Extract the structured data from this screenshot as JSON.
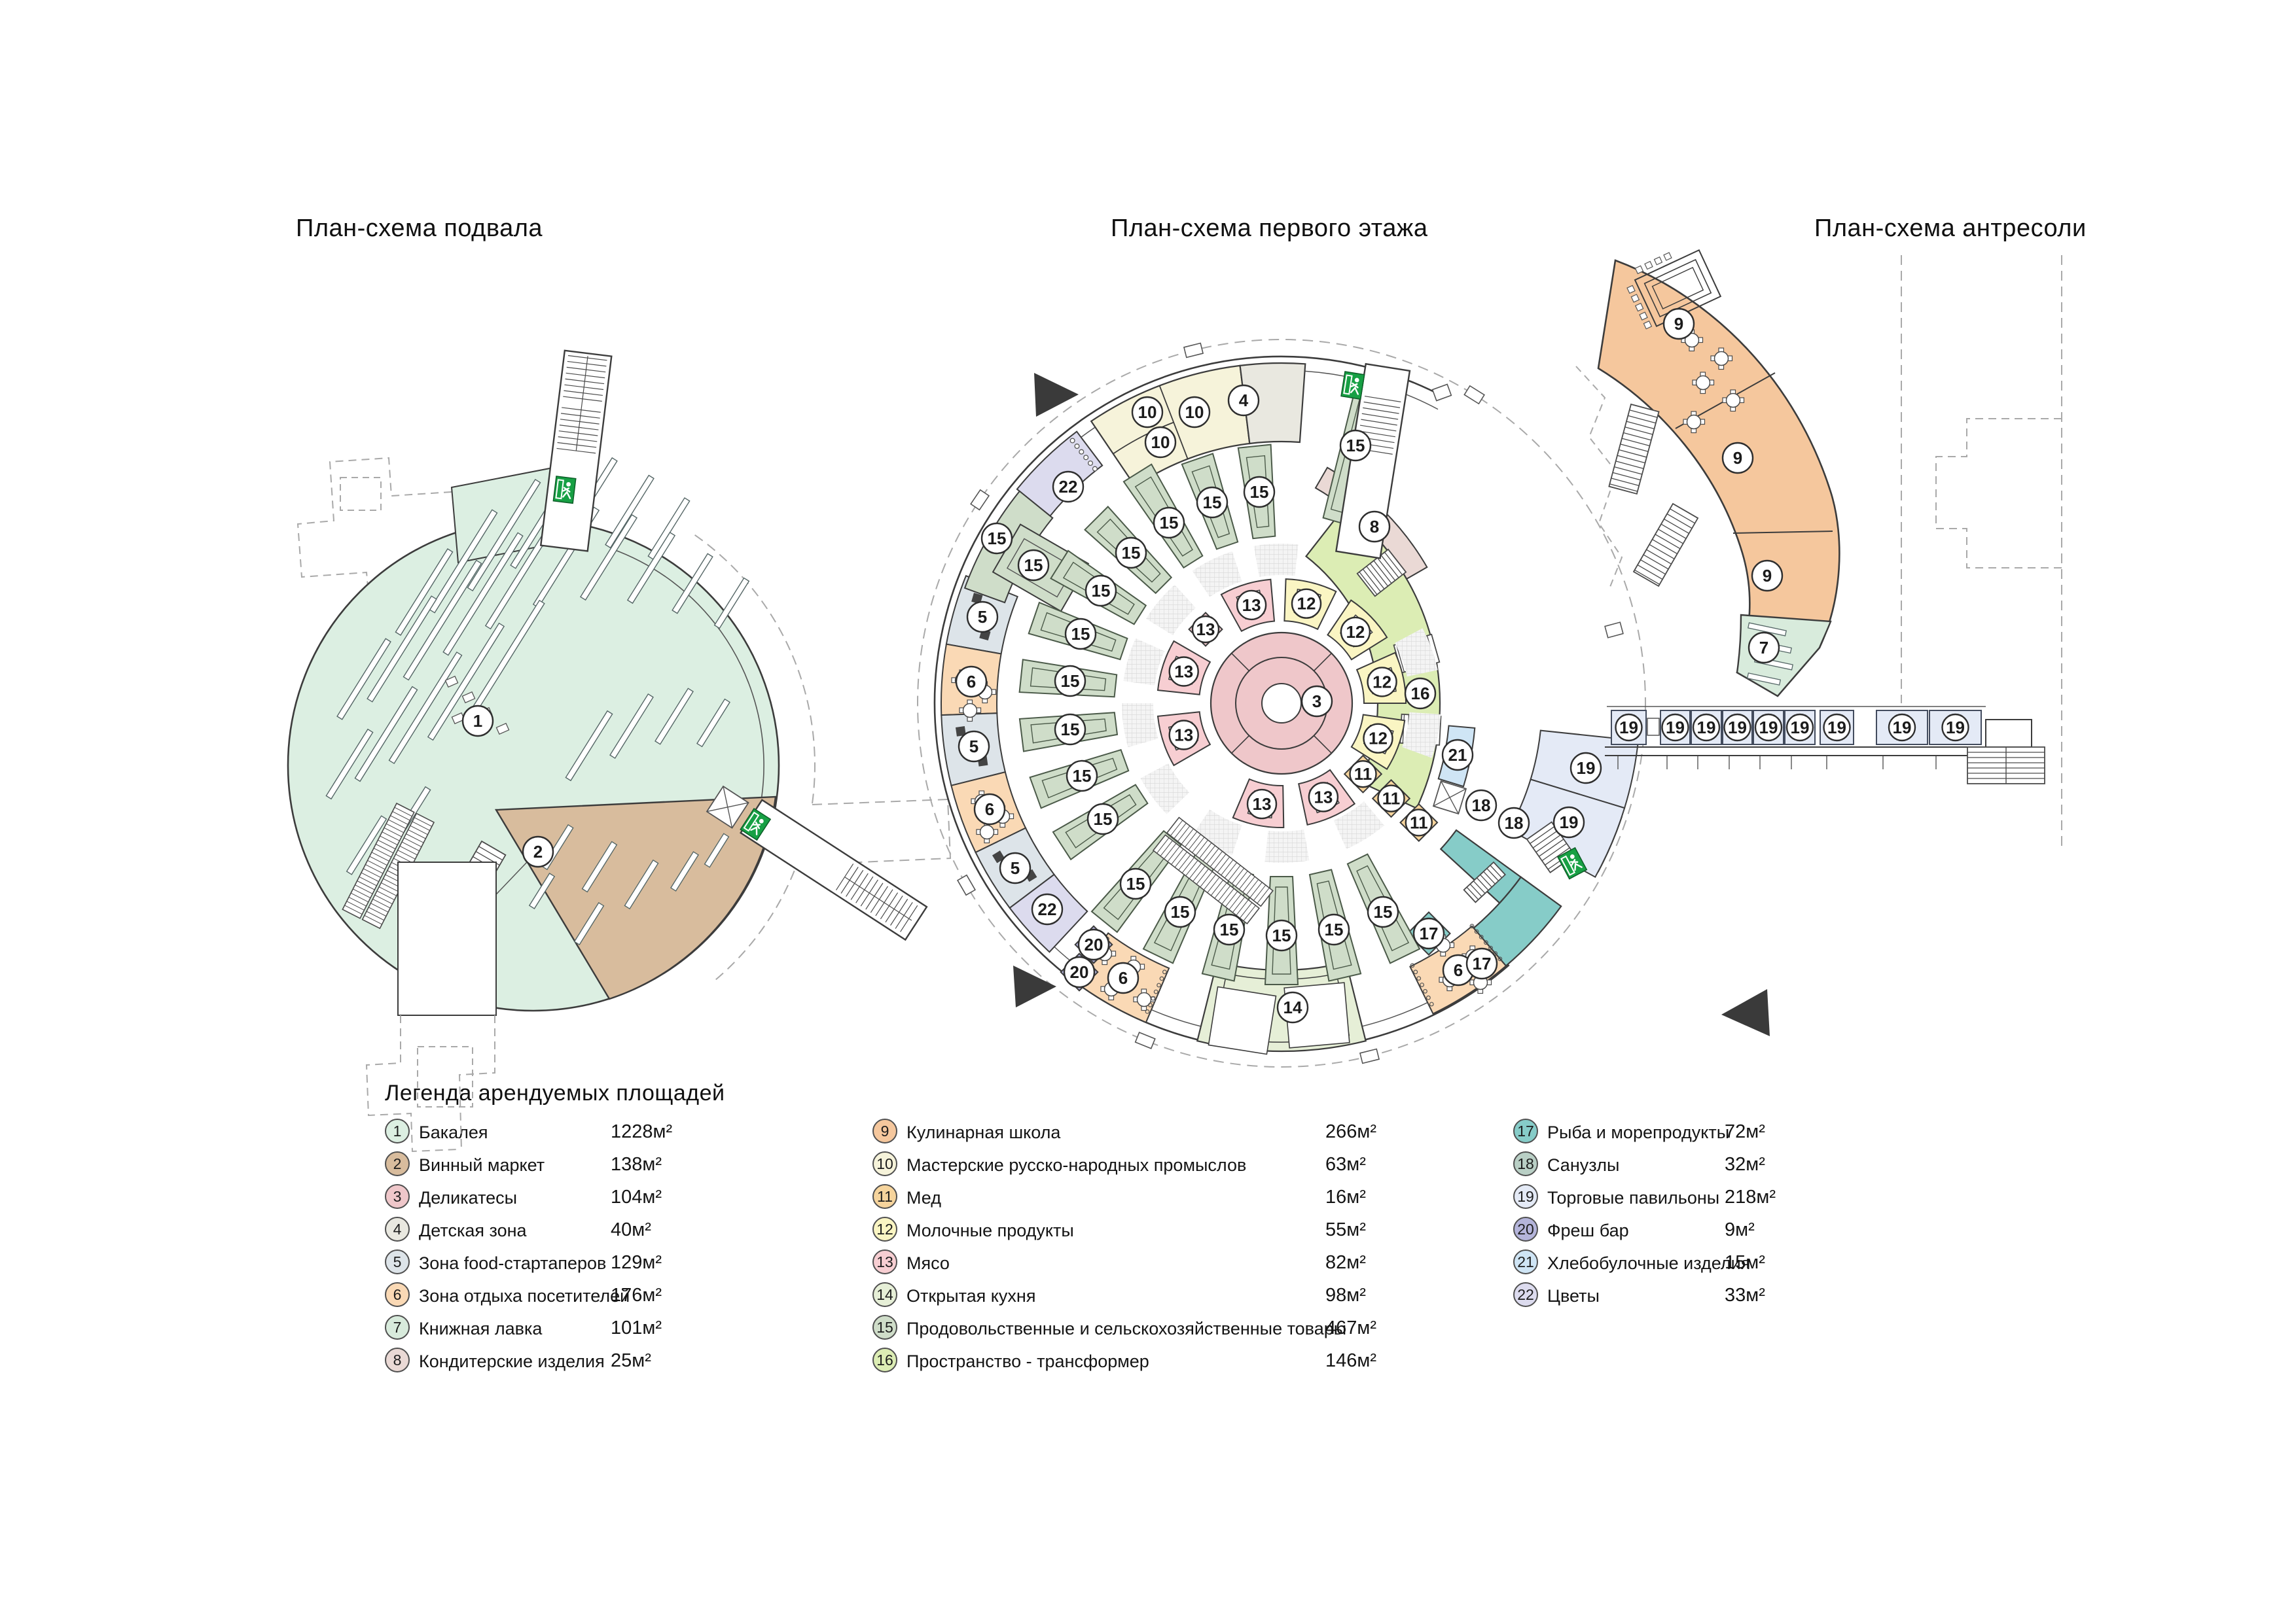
{
  "titles": {
    "basement": "План-схема подвала",
    "first_floor": "План-схема первого этажа",
    "mezzanine": "План-схема антресоли"
  },
  "legend": {
    "title": "Легенда арендуемых площадей",
    "items": [
      {
        "id": "1",
        "label": "Бакалея",
        "area": "1228м²",
        "color": "#dcefe2"
      },
      {
        "id": "2",
        "label": "Винный маркет",
        "area": "138м²",
        "color": "#d8bc9d"
      },
      {
        "id": "3",
        "label": "Деликатесы",
        "area": "104м²",
        "color": "#efc7ca"
      },
      {
        "id": "4",
        "label": "Детская зона",
        "area": "40м²",
        "color": "#e9e8e0"
      },
      {
        "id": "5",
        "label": "Зона food-стартаперов",
        "area": "129м²",
        "color": "#dde4e9"
      },
      {
        "id": "6",
        "label": "Зона отдыха посетителей",
        "area": "176м²",
        "color": "#fad9b5"
      },
      {
        "id": "7",
        "label": "Книжная лавка",
        "area": "101м²",
        "color": "#d8ebdc"
      },
      {
        "id": "8",
        "label": "Кондитерские изделия",
        "area": "25м²",
        "color": "#ead9d5"
      },
      {
        "id": "9",
        "label": "Кулинарная школа",
        "area": "266м²",
        "color": "#f5c79d"
      },
      {
        "id": "10",
        "label": "Мастерские русско-народных промыслов",
        "area": "63м²",
        "color": "#f6f3da"
      },
      {
        "id": "11",
        "label": "Мед",
        "area": "16м²",
        "color": "#f6d49c"
      },
      {
        "id": "12",
        "label": "Молочные продукты",
        "area": "55м²",
        "color": "#faf5c3"
      },
      {
        "id": "13",
        "label": "Мясо",
        "area": "82м²",
        "color": "#f7ced2"
      },
      {
        "id": "14",
        "label": "Открытая кухня",
        "area": "98м²",
        "color": "#e6efd7"
      },
      {
        "id": "15",
        "label": "Продовольственные и сельскохозяйственные товары",
        "area": "467м²",
        "color": "#cfddc9"
      },
      {
        "id": "16",
        "label": "Пространство - трансформер",
        "area": "146м²",
        "color": "#dcedb4"
      },
      {
        "id": "17",
        "label": "Рыба и морепродукты",
        "area": "72м²",
        "color": "#86ccc8"
      },
      {
        "id": "18",
        "label": "Санузлы",
        "area": "32м²",
        "color": "#b9cfc5"
      },
      {
        "id": "19",
        "label": "Торговые павильоны",
        "area": "218м²",
        "color": "#e4eaf6"
      },
      {
        "id": "20",
        "label": "Фреш бар",
        "area": "9м²",
        "color": "#b4b4da"
      },
      {
        "id": "21",
        "label": "Хлебобулочные изделия",
        "area": "15м²",
        "color": "#cfe5f5"
      },
      {
        "id": "22",
        "label": "Цветы",
        "area": "33м²",
        "color": "#dcdbee"
      }
    ]
  },
  "plans": {
    "basement": {
      "zones_present": [
        "1",
        "2"
      ]
    },
    "first_floor": {
      "zones_present": [
        "3",
        "4",
        "5",
        "6",
        "8",
        "10",
        "11",
        "12",
        "13",
        "14",
        "15",
        "16",
        "17",
        "18",
        "19",
        "20",
        "21",
        "22"
      ]
    },
    "mezzanine": {
      "zones_present": [
        "7",
        "9"
      ]
    }
  },
  "icons": {
    "exit": "emergency-exit-running-man"
  },
  "ui": {
    "wall": "#3c3c3c",
    "thin": "#555555",
    "dashed": "#a9a9a9",
    "exit_green": "#17a044",
    "paper": "#ffffff",
    "marker_stroke": "#2e2e2e",
    "hatch_line": "#d8d8d8",
    "hatch_bg": "#f4f4f4",
    "stairs": "#4a4a4a",
    "basement_fill": "#dcefe2",
    "wedge_fill": "#d8bc9d"
  }
}
